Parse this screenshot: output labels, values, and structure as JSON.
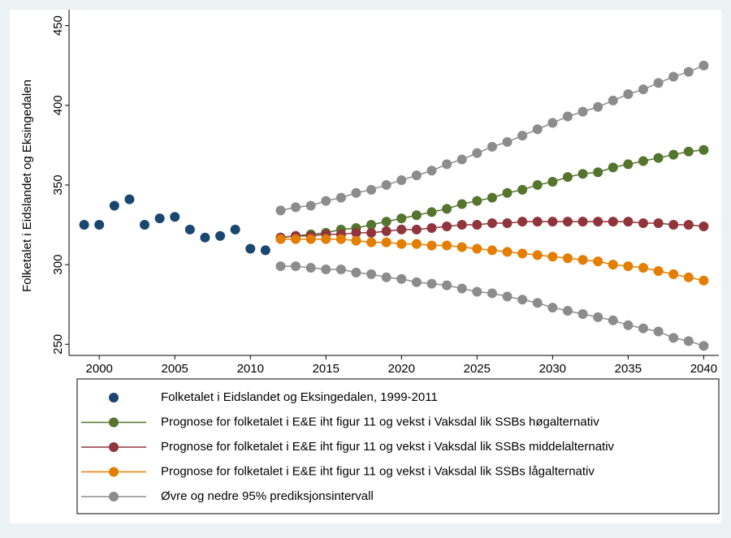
{
  "chart_data": {
    "type": "line",
    "y_label": "Folketalet i Eidslandet og Eksingedalen",
    "xlim": [
      1998,
      2041
    ],
    "xticks": [
      2000,
      2005,
      2010,
      2015,
      2020,
      2025,
      2030,
      2035,
      2040
    ],
    "ylim": [
      243,
      460
    ],
    "yticks": [
      250,
      300,
      350,
      400,
      450
    ],
    "series": [
      {
        "name": "Folketalet i Eidslandet og Eksingedalen, 1999-2011",
        "color": "#1a476f",
        "line": false,
        "x": [
          1999,
          2000,
          2001,
          2002,
          2003,
          2004,
          2005,
          2006,
          2007,
          2008,
          2009,
          2010,
          2011
        ],
        "values": [
          325,
          325,
          337,
          341,
          325,
          329,
          330,
          322,
          317,
          318,
          322,
          310,
          309
        ]
      },
      {
        "name": "Prognose for folketalet i E&E iht figur 11 og vekst i Vaksdal lik SSBs høgalternativ",
        "color": "#55752f",
        "line": true,
        "x": [
          2012,
          2013,
          2014,
          2015,
          2016,
          2017,
          2018,
          2019,
          2020,
          2021,
          2022,
          2023,
          2024,
          2025,
          2026,
          2027,
          2028,
          2029,
          2030,
          2031,
          2032,
          2033,
          2034,
          2035,
          2036,
          2037,
          2038,
          2039,
          2040
        ],
        "values": [
          317,
          318,
          319,
          320,
          322,
          323,
          325,
          327,
          329,
          331,
          333,
          335,
          338,
          340,
          342,
          345,
          347,
          350,
          352,
          355,
          357,
          358,
          361,
          363,
          365,
          367,
          369,
          371,
          372
        ]
      },
      {
        "name": "Prognose for folketalet i E&E iht figur 11 og vekst i Vaksdal lik SSBs middelalternativ",
        "color": "#90353b",
        "line": true,
        "x": [
          2012,
          2013,
          2014,
          2015,
          2016,
          2017,
          2018,
          2019,
          2020,
          2021,
          2022,
          2023,
          2024,
          2025,
          2026,
          2027,
          2028,
          2029,
          2030,
          2031,
          2032,
          2033,
          2034,
          2035,
          2036,
          2037,
          2038,
          2039,
          2040
        ],
        "values": [
          317,
          318,
          318,
          319,
          319,
          320,
          320,
          321,
          322,
          322,
          323,
          324,
          325,
          325,
          326,
          326,
          327,
          327,
          327,
          327,
          327,
          327,
          327,
          327,
          326,
          326,
          325,
          325,
          324
        ]
      },
      {
        "name": "Prognose for folketalet i E&E iht figur 11 og vekst i Vaksdal lik SSBs lågalternativ",
        "color": "#e37e00",
        "line": true,
        "x": [
          2012,
          2013,
          2014,
          2015,
          2016,
          2017,
          2018,
          2019,
          2020,
          2021,
          2022,
          2023,
          2024,
          2025,
          2026,
          2027,
          2028,
          2029,
          2030,
          2031,
          2032,
          2033,
          2034,
          2035,
          2036,
          2037,
          2038,
          2039,
          2040
        ],
        "values": [
          316,
          316,
          316,
          316,
          316,
          315,
          314,
          314,
          313,
          313,
          312,
          312,
          311,
          310,
          309,
          308,
          307,
          306,
          305,
          304,
          303,
          302,
          300,
          299,
          298,
          296,
          294,
          292,
          290
        ]
      },
      {
        "name": "Øvre og nedre 95% prediksjonsintervall",
        "color": "#8c8c8c",
        "line": true,
        "x": [
          2012,
          2013,
          2014,
          2015,
          2016,
          2017,
          2018,
          2019,
          2020,
          2021,
          2022,
          2023,
          2024,
          2025,
          2026,
          2027,
          2028,
          2029,
          2030,
          2031,
          2032,
          2033,
          2034,
          2035,
          2036,
          2037,
          2038,
          2039,
          2040
        ],
        "values": [
          334,
          336,
          337,
          340,
          342,
          345,
          347,
          350,
          353,
          356,
          359,
          363,
          366,
          370,
          374,
          377,
          381,
          385,
          389,
          393,
          396,
          399,
          403,
          407,
          410,
          414,
          418,
          421,
          425
        ]
      },
      {
        "color": "#8c8c8c",
        "line": true,
        "x": [
          2012,
          2013,
          2014,
          2015,
          2016,
          2017,
          2018,
          2019,
          2020,
          2021,
          2022,
          2023,
          2024,
          2025,
          2026,
          2027,
          2028,
          2029,
          2030,
          2031,
          2032,
          2033,
          2034,
          2035,
          2036,
          2037,
          2038,
          2039,
          2040
        ],
        "values": [
          299,
          299,
          298,
          297,
          297,
          295,
          294,
          292,
          291,
          289,
          288,
          287,
          285,
          283,
          282,
          280,
          278,
          276,
          273,
          271,
          269,
          267,
          265,
          262,
          260,
          258,
          254,
          252,
          249
        ]
      }
    ]
  }
}
